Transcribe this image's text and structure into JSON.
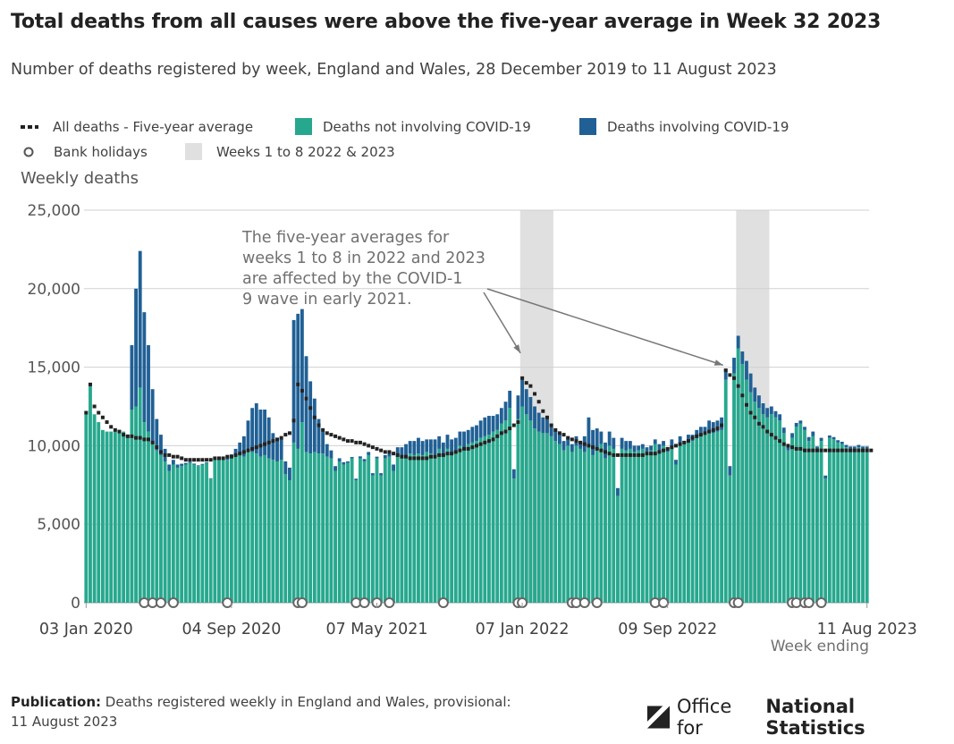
{
  "title": "Total deaths from all causes were above the five-year average in Week 32 2023",
  "subtitle": "Number of deaths registered by week, England and Wales, 28 December 2019 to 11 August 2023",
  "legend": {
    "average": "All deaths - Five-year average",
    "not_covid": "Deaths not involving COVID-19",
    "covid": "Deaths involving COVID-19",
    "bank_holidays": "Bank holidays",
    "weeks_shade": "Weeks 1 to 8 2022 & 2023"
  },
  "footer": {
    "publication_label": "Publication:",
    "publication_text": "Deaths registered weekly in England and Wales, provisional:",
    "publication_date": "11 August 2023",
    "logo_regular": "Office for",
    "logo_bold": "National Statistics"
  },
  "colors": {
    "not_covid": "#27a88e",
    "covid": "#206095",
    "average": "#222222",
    "shade": "#e0e0e0",
    "grid": "#d0d0d0"
  },
  "chart_data": {
    "type": "bar",
    "stacked": true,
    "title": "Total deaths from all causes were above the five-year average in Week 32 2023",
    "ylabel": "Weekly deaths",
    "xlabel": "Week ending",
    "ylim": [
      0,
      25000
    ],
    "yticks": [
      0,
      5000,
      10000,
      15000,
      20000,
      25000
    ],
    "ytick_labels": [
      "0",
      "5,000",
      "10,000",
      "15,000",
      "20,000",
      "25,000"
    ],
    "xtick_labels": [
      {
        "label": "03 Jan 2020",
        "week_index": 0
      },
      {
        "label": "04 Sep 2020",
        "week_index": 35
      },
      {
        "label": "07 May 2021",
        "week_index": 70
      },
      {
        "label": "07 Jan 2022",
        "week_index": 105
      },
      {
        "label": "09 Sep 2022",
        "week_index": 140
      },
      {
        "label": "11 Aug 2023",
        "week_index": 188
      }
    ],
    "annotation": "The five-year averages for weeks 1 to 8 in 2022 and 2023 are affected by the COVID-19 wave in early 2021.",
    "annotation_targets": [
      105,
      154
    ],
    "shaded_ranges": [
      [
        105,
        112
      ],
      [
        157,
        164
      ]
    ],
    "bank_holiday_weeks": [
      14,
      16,
      18,
      21,
      34,
      51,
      52,
      65,
      67,
      70,
      73,
      86,
      104,
      105,
      117,
      118,
      120,
      123,
      137,
      139,
      156,
      157,
      170,
      171,
      173,
      174,
      177
    ],
    "series": [
      {
        "name": "Deaths not involving COVID-19",
        "values": [
          12200,
          14000,
          12000,
          11500,
          11000,
          10900,
          10900,
          10900,
          10800,
          10900,
          10700,
          12300,
          12500,
          13700,
          11500,
          10900,
          10200,
          9700,
          9400,
          9000,
          8400,
          8800,
          8600,
          8700,
          8800,
          8900,
          8800,
          8700,
          8800,
          8900,
          7900,
          9100,
          9200,
          9200,
          9100,
          9200,
          9400,
          9500,
          9300,
          9600,
          9600,
          9500,
          9300,
          9400,
          9200,
          9100,
          9000,
          9100,
          8200,
          7800,
          10200,
          9800,
          11500,
          9600,
          9500,
          9600,
          9500,
          9500,
          9300,
          9200,
          8400,
          9000,
          8800,
          8900,
          9200,
          7800,
          9200,
          9000,
          9400,
          8100,
          9200,
          8100,
          9200,
          9300,
          8400,
          9400,
          9300,
          9400,
          9500,
          9400,
          9500,
          9400,
          9600,
          9500,
          9400,
          9800,
          9300,
          9800,
          9600,
          9700,
          10000,
          9900,
          10100,
          10200,
          10300,
          10500,
          10600,
          10700,
          10900,
          11000,
          11400,
          11600,
          12400,
          7900,
          11700,
          12500,
          12000,
          11600,
          11100,
          10900,
          10800,
          10800,
          10600,
          10300,
          10100,
          9700,
          10000,
          9600,
          10000,
          9800,
          9600,
          10000,
          9400,
          9700,
          10100,
          9200,
          10000,
          9800,
          6800,
          9800,
          9700,
          9800,
          9600,
          9700,
          9800,
          9600,
          9700,
          10100,
          9700,
          10000,
          9600,
          10000,
          8800,
          10200,
          10100,
          10300,
          10300,
          10600,
          10800,
          10700,
          11000,
          10800,
          10900,
          11000,
          14200,
          8100,
          14600,
          16200,
          15200,
          14200,
          13400,
          12800,
          12400,
          12000,
          11800,
          12000,
          11800,
          11600,
          10800,
          9700,
          10500,
          11200,
          11400,
          11000,
          10300,
          10600,
          9700,
          10300,
          7900,
          10500,
          10400,
          10200,
          10100,
          9900,
          9800,
          9800,
          9900,
          9800,
          9800
        ]
      },
      {
        "name": "Deaths involving COVID-19",
        "values": [
          0,
          0,
          0,
          0,
          0,
          0,
          0,
          0,
          0,
          0,
          0,
          4100,
          7500,
          8700,
          7000,
          5500,
          3400,
          2000,
          1300,
          800,
          400,
          300,
          200,
          150,
          100,
          80,
          60,
          50,
          40,
          40,
          30,
          50,
          60,
          80,
          120,
          250,
          400,
          700,
          1300,
          2000,
          2800,
          3200,
          3000,
          2900,
          2600,
          1700,
          1400,
          1400,
          800,
          800,
          7800,
          8600,
          7200,
          6100,
          4600,
          3400,
          2200,
          1400,
          800,
          500,
          300,
          200,
          150,
          100,
          80,
          100,
          120,
          150,
          200,
          150,
          100,
          150,
          200,
          300,
          400,
          500,
          600,
          700,
          800,
          900,
          1000,
          900,
          800,
          900,
          1000,
          800,
          900,
          900,
          800,
          800,
          900,
          1000,
          900,
          1000,
          1000,
          1100,
          1200,
          1200,
          1000,
          1000,
          1000,
          1200,
          1100,
          600,
          1500,
          1700,
          1600,
          1500,
          1400,
          1200,
          1000,
          900,
          800,
          700,
          600,
          600,
          500,
          500,
          600,
          500,
          1000,
          1800,
          1600,
          1400,
          800,
          1000,
          900,
          700,
          500,
          700,
          600,
          500,
          400,
          300,
          300,
          300,
          300,
          300,
          400,
          300,
          300,
          400,
          300,
          400,
          200,
          400,
          400,
          400,
          400,
          500,
          600,
          700,
          700,
          800,
          700,
          600,
          1000,
          800,
          800,
          1200,
          1200,
          900,
          800,
          700,
          600,
          500,
          400,
          400,
          350,
          300,
          300,
          250,
          200,
          200,
          250,
          300,
          250,
          200,
          200,
          150,
          150,
          150,
          150,
          150,
          150,
          150,
          150,
          150,
          150
        ]
      },
      {
        "name": "All deaths - Five-year average",
        "type": "line",
        "values": [
          12100,
          13900,
          12500,
          12100,
          11800,
          11500,
          11200,
          11000,
          10900,
          10700,
          10600,
          10600,
          10500,
          10500,
          10400,
          10400,
          10200,
          9900,
          9600,
          9400,
          9400,
          9300,
          9300,
          9200,
          9100,
          9100,
          9100,
          9100,
          9100,
          9100,
          9100,
          9200,
          9200,
          9200,
          9300,
          9300,
          9400,
          9500,
          9600,
          9700,
          9800,
          9900,
          10000,
          10100,
          10200,
          10300,
          10400,
          10500,
          10700,
          10800,
          11600,
          13900,
          13500,
          13000,
          12400,
          11800,
          11300,
          11000,
          10800,
          10700,
          10600,
          10500,
          10400,
          10300,
          10300,
          10200,
          10200,
          10100,
          10000,
          9900,
          9800,
          9700,
          9600,
          9600,
          9500,
          9400,
          9300,
          9300,
          9200,
          9200,
          9200,
          9200,
          9200,
          9300,
          9300,
          9400,
          9400,
          9500,
          9500,
          9600,
          9700,
          9800,
          9800,
          9900,
          10000,
          10100,
          10200,
          10300,
          10400,
          10600,
          10800,
          10900,
          11100,
          11300,
          11500,
          14300,
          14000,
          13800,
          13300,
          12800,
          12200,
          11800,
          11300,
          11000,
          10800,
          10700,
          10500,
          10400,
          10300,
          10200,
          10100,
          10000,
          9900,
          9800,
          9700,
          9600,
          9500,
          9400,
          9400,
          9400,
          9400,
          9400,
          9400,
          9400,
          9400,
          9500,
          9500,
          9500,
          9600,
          9700,
          9800,
          9900,
          10000,
          10100,
          10200,
          10300,
          10500,
          10600,
          10700,
          10800,
          10900,
          11000,
          11100,
          11300,
          14800,
          14500,
          14300,
          13800,
          13200,
          12600,
          12100,
          11800,
          11400,
          11200,
          10900,
          10700,
          10500,
          10300,
          10100,
          10000,
          9900,
          9800,
          9800,
          9700,
          9700,
          9700,
          9700,
          9700,
          9700,
          9700,
          9700,
          9700,
          9700,
          9700,
          9700,
          9700,
          9700,
          9700,
          9700,
          9700
        ]
      }
    ]
  }
}
